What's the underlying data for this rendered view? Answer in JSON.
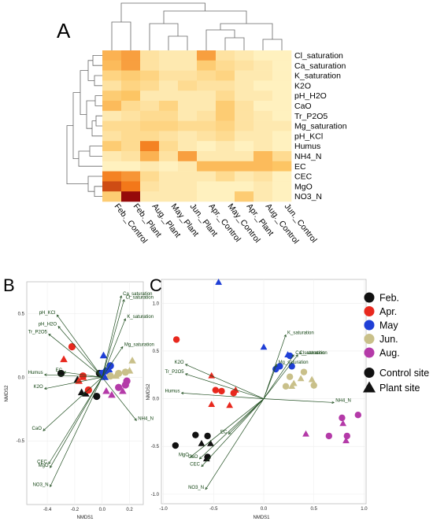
{
  "panel_letters": {
    "a": "A",
    "b": "B",
    "c": "C"
  },
  "legend": {
    "months": [
      {
        "label": "Feb.",
        "color": "#111111"
      },
      {
        "label": "Apr.",
        "color": "#e8281e"
      },
      {
        "label": "May",
        "color": "#1f3fd6"
      },
      {
        "label": "Jun.",
        "color": "#c9c08a"
      },
      {
        "label": "Aug.",
        "color": "#b43aa8"
      }
    ],
    "sites": [
      {
        "label": "Control site",
        "shape": "circle"
      },
      {
        "label": "Plant site",
        "shape": "triangle"
      }
    ]
  },
  "chart_data": [
    {
      "type": "heatmap",
      "panel": "A",
      "columns": [
        "Feb._Control",
        "Feb._Plant",
        "Aug._Plant",
        "May_Plant",
        "Jun._Plant",
        "Apr._Control",
        "May_Control",
        "Apr._Plant",
        "Aug._Control",
        "Jun._Control"
      ],
      "rows": [
        "Cl_saturation",
        "Ca_saturation",
        "K_saturation",
        "K2O",
        "pH_H2O",
        "CaO",
        "Tr_P2O5",
        "Mg_saturation",
        "pH_KCl",
        "Humus",
        "NH4_N",
        "EC",
        "CEC",
        "MgO",
        "NO3_N"
      ],
      "values": [
        [
          0.45,
          0.55,
          0.15,
          0.1,
          0.1,
          0.55,
          0.15,
          0.1,
          0.05,
          0.05
        ],
        [
          0.4,
          0.55,
          0.15,
          0.1,
          0.1,
          0.3,
          0.2,
          0.15,
          0.1,
          0.05
        ],
        [
          0.25,
          0.3,
          0.25,
          0.15,
          0.15,
          0.2,
          0.25,
          0.1,
          0.1,
          0.05
        ],
        [
          0.15,
          0.25,
          0.2,
          0.1,
          0.2,
          0.15,
          0.15,
          0.1,
          0.05,
          0.05
        ],
        [
          0.3,
          0.35,
          0.1,
          0.1,
          0.1,
          0.1,
          0.2,
          0.1,
          0.1,
          0.05
        ],
        [
          0.4,
          0.2,
          0.15,
          0.25,
          0.1,
          0.1,
          0.3,
          0.15,
          0.05,
          0.05
        ],
        [
          0.1,
          0.15,
          0.2,
          0.2,
          0.1,
          0.15,
          0.3,
          0.15,
          0.1,
          0.05
        ],
        [
          0.2,
          0.2,
          0.25,
          0.25,
          0.2,
          0.2,
          0.25,
          0.15,
          0.1,
          0.1
        ],
        [
          0.15,
          0.2,
          0.2,
          0.15,
          0.1,
          0.15,
          0.2,
          0.1,
          0.1,
          0.05
        ],
        [
          0.3,
          0.2,
          0.7,
          0.2,
          0.1,
          0.05,
          0.1,
          0.05,
          0.1,
          0.05
        ],
        [
          0.1,
          0.15,
          0.45,
          0.15,
          0.55,
          0.1,
          0.1,
          0.1,
          0.4,
          0.2
        ],
        [
          0.05,
          0.05,
          0.1,
          0.05,
          0.1,
          0.4,
          0.4,
          0.4,
          0.4,
          0.35
        ],
        [
          0.7,
          0.6,
          0.2,
          0.1,
          0.1,
          0.1,
          0.2,
          0.1,
          0.15,
          0.05
        ],
        [
          0.85,
          0.75,
          0.15,
          0.1,
          0.1,
          0.05,
          0.05,
          0.05,
          0.1,
          0.05
        ],
        [
          0.3,
          1.0,
          0.1,
          0.1,
          0.1,
          0.05,
          0.05,
          0.3,
          0.1,
          0.05
        ]
      ]
    },
    {
      "type": "scatter",
      "panel": "B",
      "xlabel": "NMDS1",
      "ylabel": "NMDS2",
      "xlim": [
        -0.55,
        0.3
      ],
      "ylim": [
        -1.0,
        0.75
      ],
      "xticks": [
        "-0.4",
        "-0.2",
        "0.0",
        "0.2"
      ],
      "yticks": [
        "-0.5",
        "0.0",
        "0.5"
      ],
      "points": [
        {
          "x": -0.02,
          "y": 0.03,
          "group": "Feb.",
          "site": "Control site"
        },
        {
          "x": -0.3,
          "y": 0.03,
          "group": "Feb.",
          "site": "Control site"
        },
        {
          "x": -0.04,
          "y": -0.15,
          "group": "Feb.",
          "site": "Control site"
        },
        {
          "x": -0.18,
          "y": -0.02,
          "group": "Feb.",
          "site": "Plant site"
        },
        {
          "x": -0.15,
          "y": -0.12,
          "group": "Feb.",
          "site": "Plant site"
        },
        {
          "x": -0.12,
          "y": -0.13,
          "group": "Feb.",
          "site": "Plant site"
        },
        {
          "x": -0.22,
          "y": 0.24,
          "group": "Apr.",
          "site": "Control site"
        },
        {
          "x": -0.14,
          "y": 0.01,
          "group": "Apr.",
          "site": "Control site"
        },
        {
          "x": -0.1,
          "y": -0.1,
          "group": "Apr.",
          "site": "Control site"
        },
        {
          "x": -0.28,
          "y": 0.14,
          "group": "Apr.",
          "site": "Plant site"
        },
        {
          "x": -0.17,
          "y": -0.03,
          "group": "Apr.",
          "site": "Plant site"
        },
        {
          "x": -0.14,
          "y": 0.0,
          "group": "Apr.",
          "site": "Plant site"
        },
        {
          "x": 0.03,
          "y": 0.05,
          "group": "May",
          "site": "Control site"
        },
        {
          "x": 0.0,
          "y": 0.03,
          "group": "May",
          "site": "Control site"
        },
        {
          "x": 0.06,
          "y": 0.09,
          "group": "May",
          "site": "Control site"
        },
        {
          "x": 0.01,
          "y": 0.17,
          "group": "May",
          "site": "Plant site"
        },
        {
          "x": 0.05,
          "y": 0.06,
          "group": "May",
          "site": "Plant site"
        },
        {
          "x": 0.02,
          "y": 0.0,
          "group": "May",
          "site": "Plant site"
        },
        {
          "x": 0.17,
          "y": 0.04,
          "group": "Jun.",
          "site": "Control site"
        },
        {
          "x": 0.12,
          "y": 0.03,
          "group": "Jun.",
          "site": "Control site"
        },
        {
          "x": 0.06,
          "y": 0.01,
          "group": "Jun.",
          "site": "Control site"
        },
        {
          "x": 0.22,
          "y": 0.13,
          "group": "Jun.",
          "site": "Plant site"
        },
        {
          "x": 0.2,
          "y": 0.05,
          "group": "Jun.",
          "site": "Plant site"
        },
        {
          "x": 0.1,
          "y": 0.01,
          "group": "Jun.",
          "site": "Plant site"
        },
        {
          "x": 0.18,
          "y": -0.03,
          "group": "Aug.",
          "site": "Control site"
        },
        {
          "x": 0.12,
          "y": -0.08,
          "group": "Aug.",
          "site": "Control site"
        },
        {
          "x": 0.17,
          "y": -0.06,
          "group": "Aug.",
          "site": "Control site"
        },
        {
          "x": 0.07,
          "y": -0.14,
          "group": "Aug.",
          "site": "Plant site"
        },
        {
          "x": 0.15,
          "y": -0.11,
          "group": "Aug.",
          "site": "Plant site"
        },
        {
          "x": 0.03,
          "y": -0.11,
          "group": "Aug.",
          "site": "Plant site"
        }
      ],
      "vectors": [
        {
          "label": "Ca_saturation",
          "x": 0.14,
          "y": 0.64
        },
        {
          "label": "Cl_saturation",
          "x": 0.16,
          "y": 0.61
        },
        {
          "label": "K_saturation",
          "x": 0.17,
          "y": 0.46
        },
        {
          "label": "pH_KCl",
          "x": -0.33,
          "y": 0.49
        },
        {
          "label": "pH_H2O",
          "x": -0.32,
          "y": 0.4
        },
        {
          "label": "Tr_P2O5",
          "x": -0.39,
          "y": 0.34
        },
        {
          "label": "Mg_saturation",
          "x": 0.15,
          "y": 0.24
        },
        {
          "label": "EC",
          "x": -0.28,
          "y": 0.04
        },
        {
          "label": "Humus",
          "x": -0.42,
          "y": 0.02
        },
        {
          "label": "K2O",
          "x": -0.42,
          "y": -0.09
        },
        {
          "label": "NH4_N",
          "x": 0.25,
          "y": -0.34
        },
        {
          "label": "CaO",
          "x": -0.43,
          "y": -0.42
        },
        {
          "label": "CEC",
          "x": -0.39,
          "y": -0.68
        },
        {
          "label": "MgO",
          "x": -0.38,
          "y": -0.71
        },
        {
          "label": "NO3_N",
          "x": -0.38,
          "y": -0.86
        }
      ]
    },
    {
      "type": "scatter",
      "panel": "C",
      "xlabel": "NMDS1",
      "ylabel": "NMDS2",
      "xlim": [
        -1.02,
        1.02
      ],
      "ylim": [
        -1.1,
        1.25
      ],
      "xticks": [
        "-1.0",
        "-0.5",
        "0.0",
        "0.5",
        "1.0"
      ],
      "yticks": [
        "-1.0",
        "-0.5",
        "0.0",
        "0.5",
        "1.0"
      ],
      "points": [
        {
          "x": -0.88,
          "y": -0.49,
          "group": "Feb.",
          "site": "Control site"
        },
        {
          "x": -0.68,
          "y": -0.38,
          "group": "Feb.",
          "site": "Control site"
        },
        {
          "x": -0.56,
          "y": -0.61,
          "group": "Feb.",
          "site": "Control site"
        },
        {
          "x": -0.56,
          "y": -0.39,
          "group": "Feb.",
          "site": "Control site"
        },
        {
          "x": -0.62,
          "y": -0.47,
          "group": "Feb.",
          "site": "Plant site"
        },
        {
          "x": -0.53,
          "y": -0.47,
          "group": "Feb.",
          "site": "Plant site"
        },
        {
          "x": -0.57,
          "y": -0.63,
          "group": "Feb.",
          "site": "Plant site"
        },
        {
          "x": -0.87,
          "y": 0.62,
          "group": "Apr.",
          "site": "Control site"
        },
        {
          "x": -0.48,
          "y": 0.09,
          "group": "Apr.",
          "site": "Control site"
        },
        {
          "x": -0.42,
          "y": 0.08,
          "group": "Apr.",
          "site": "Control site"
        },
        {
          "x": -0.3,
          "y": 0.06,
          "group": "Apr.",
          "site": "Control site"
        },
        {
          "x": -0.52,
          "y": 0.24,
          "group": "Apr.",
          "site": "Plant site"
        },
        {
          "x": -0.52,
          "y": -0.06,
          "group": "Apr.",
          "site": "Plant site"
        },
        {
          "x": -0.34,
          "y": -0.07,
          "group": "Apr.",
          "site": "Plant site"
        },
        {
          "x": -0.28,
          "y": 0.09,
          "group": "Apr.",
          "site": "Plant site"
        },
        {
          "x": 0.12,
          "y": 0.31,
          "group": "May",
          "site": "Control site"
        },
        {
          "x": 0.16,
          "y": 0.34,
          "group": "May",
          "site": "Control site"
        },
        {
          "x": 0.26,
          "y": 0.45,
          "group": "May",
          "site": "Control site"
        },
        {
          "x": 0.28,
          "y": 0.34,
          "group": "May",
          "site": "Control site"
        },
        {
          "x": -0.45,
          "y": 1.22,
          "group": "May",
          "site": "Plant site"
        },
        {
          "x": 0.0,
          "y": 0.54,
          "group": "May",
          "site": "Plant site"
        },
        {
          "x": 0.24,
          "y": 0.46,
          "group": "May",
          "site": "Plant site"
        },
        {
          "x": 0.4,
          "y": 0.28,
          "group": "Jun.",
          "site": "Control site"
        },
        {
          "x": 0.22,
          "y": 0.13,
          "group": "Jun.",
          "site": "Control site"
        },
        {
          "x": 0.26,
          "y": 0.23,
          "group": "Jun.",
          "site": "Control site"
        },
        {
          "x": 0.5,
          "y": 0.14,
          "group": "Jun.",
          "site": "Control site"
        },
        {
          "x": 0.37,
          "y": 0.21,
          "group": "Jun.",
          "site": "Plant site"
        },
        {
          "x": 0.48,
          "y": 0.2,
          "group": "Jun.",
          "site": "Plant site"
        },
        {
          "x": 0.3,
          "y": 0.16,
          "group": "Jun.",
          "site": "Plant site"
        },
        {
          "x": 0.28,
          "y": 0.13,
          "group": "Jun.",
          "site": "Plant site"
        },
        {
          "x": 0.94,
          "y": -0.17,
          "group": "Aug.",
          "site": "Control site"
        },
        {
          "x": 0.78,
          "y": -0.2,
          "group": "Aug.",
          "site": "Control site"
        },
        {
          "x": 0.65,
          "y": -0.39,
          "group": "Aug.",
          "site": "Control site"
        },
        {
          "x": 0.83,
          "y": -0.39,
          "group": "Aug.",
          "site": "Control site"
        },
        {
          "x": 0.42,
          "y": -0.37,
          "group": "Aug.",
          "site": "Plant site"
        },
        {
          "x": 0.79,
          "y": -0.26,
          "group": "Aug.",
          "site": "Plant site"
        },
        {
          "x": 0.82,
          "y": -0.44,
          "group": "Aug.",
          "site": "Plant site"
        }
      ],
      "vectors": [
        {
          "label": "K_saturation",
          "x": 0.22,
          "y": 0.67
        },
        {
          "label": "Ca_saturation",
          "x": 0.3,
          "y": 0.46
        },
        {
          "label": "Cl_saturation",
          "x": 0.34,
          "y": 0.46
        },
        {
          "label": "Mg_saturation",
          "x": 0.13,
          "y": 0.36
        },
        {
          "label": "K2O",
          "x": -0.78,
          "y": 0.36
        },
        {
          "label": "Tr_P2O5",
          "x": -0.78,
          "y": 0.26
        },
        {
          "label": "Humus",
          "x": -0.82,
          "y": 0.06
        },
        {
          "label": "NH4_N",
          "x": 0.7,
          "y": -0.04
        },
        {
          "label": "EC",
          "x": -0.35,
          "y": -0.37
        },
        {
          "label": "MgO",
          "x": -0.73,
          "y": -0.61
        },
        {
          "label": "CaO",
          "x": -0.64,
          "y": -0.63
        },
        {
          "label": "CEC",
          "x": -0.62,
          "y": -0.71
        },
        {
          "label": "NO3_N",
          "x": -0.58,
          "y": -0.95
        }
      ]
    }
  ]
}
